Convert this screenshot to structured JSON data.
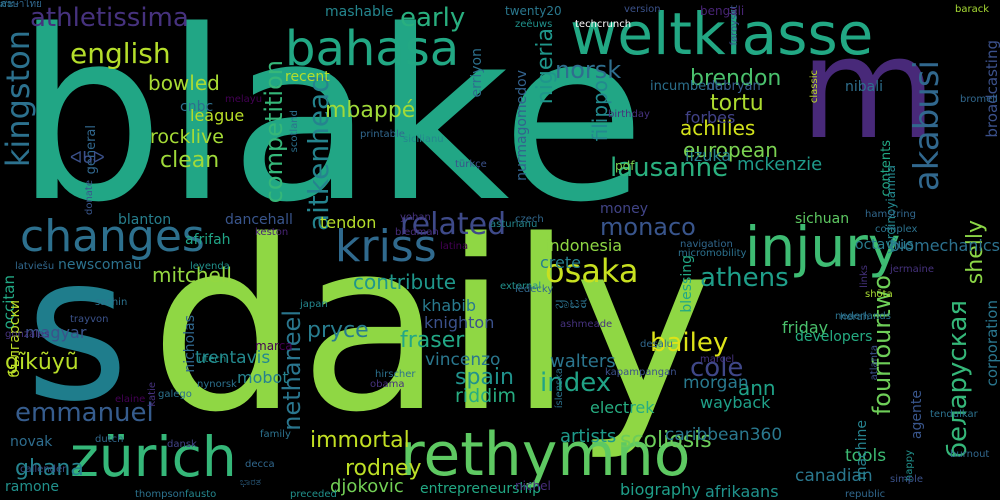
{
  "words": [
    {
      "text": "blake",
      "color": "#21a685"
    },
    {
      "text": "daily",
      "color": "#8fd744"
    },
    {
      "text": "s",
      "color": "#1f7d8c"
    },
    {
      "text": "m",
      "color": "#482979"
    },
    {
      "text": "weltklasse",
      "color": "#22a884"
    },
    {
      "text": "injury",
      "color": "#3ebc73"
    },
    {
      "text": "rethymno",
      "color": "#5ec962"
    },
    {
      "text": "zürich",
      "color": "#35b779"
    },
    {
      "text": "bahasa",
      "color": "#22a884"
    },
    {
      "text": "changes",
      "color": "#2d708e"
    },
    {
      "text": "kriss",
      "color": "#306a8e"
    },
    {
      "text": "english",
      "color": "#b5de2b"
    },
    {
      "text": "kingston",
      "color": "#2c718e"
    },
    {
      "text": "competition",
      "color": "#35b779"
    },
    {
      "text": "aitkenhead",
      "color": "#25848e"
    },
    {
      "text": "related",
      "color": "#3e4a89"
    },
    {
      "text": "osaka",
      "color": "#c8e020"
    },
    {
      "text": "athens",
      "color": "#1f9e89"
    },
    {
      "text": "akabusi",
      "color": "#31688e"
    },
    {
      "text": "fourfourtwo",
      "color": "#6ece58"
    },
    {
      "text": "беларуская",
      "color": "#35b779"
    },
    {
      "text": "emmanuel",
      "color": "#365c8d"
    },
    {
      "text": "bailey",
      "color": "#dde318"
    },
    {
      "text": "athletissima",
      "color": "#46327e"
    },
    {
      "text": "lausanne",
      "color": "#2ab07f"
    },
    {
      "text": "monaco",
      "color": "#39558c"
    },
    {
      "text": "mbappé",
      "color": "#a0da39"
    },
    {
      "text": "early",
      "color": "#29af7f"
    },
    {
      "text": "norsk",
      "color": "#2e6e8e"
    },
    {
      "text": "nigeria",
      "color": "#1f968b"
    },
    {
      "text": "brendon",
      "color": "#4ac16d"
    },
    {
      "text": "tortu",
      "color": "#addc30"
    },
    {
      "text": "european",
      "color": "#7ad151"
    },
    {
      "text": "achilles",
      "color": "#d2e21b"
    },
    {
      "text": "shelly",
      "color": "#8bd646"
    },
    {
      "text": "bowled",
      "color": "#a8db34"
    },
    {
      "text": "clean",
      "color": "#9fda3a"
    },
    {
      "text": "rocklive",
      "color": "#a5db36"
    },
    {
      "text": "league",
      "color": "#bade28"
    },
    {
      "text": "mitchell",
      "color": "#93d741"
    },
    {
      "text": "contribute",
      "color": "#1f978b"
    },
    {
      "text": "fraser",
      "color": "#22a785"
    },
    {
      "text": "pryce",
      "color": "#287c8e"
    },
    {
      "text": "index",
      "color": "#20a386"
    },
    {
      "text": "cole",
      "color": "#3f4788"
    },
    {
      "text": "ann",
      "color": "#1fa187"
    },
    {
      "text": "morgan",
      "color": "#29798e"
    },
    {
      "text": "spain",
      "color": "#20928c"
    },
    {
      "text": "riddim",
      "color": "#27ad81"
    },
    {
      "text": "nethaneel",
      "color": "#2a768e"
    },
    {
      "text": "immortal",
      "color": "#c2df23"
    },
    {
      "text": "rodney",
      "color": "#bddf26"
    },
    {
      "text": "djokovic",
      "color": "#73d056"
    },
    {
      "text": "scoliosis",
      "color": "#6ccd5a"
    },
    {
      "text": "artists",
      "color": "#1e9b8a"
    },
    {
      "text": "ghana",
      "color": "#25838e"
    },
    {
      "text": "gĩkũyũ",
      "color": "#b8de29"
    },
    {
      "text": "filippo",
      "color": "#23898e"
    },
    {
      "text": "vincenzo",
      "color": "#2a778e"
    },
    {
      "text": "walters",
      "color": "#2b758e"
    },
    {
      "text": "khabib",
      "color": "#297a8e"
    },
    {
      "text": "knighton",
      "color": "#3b518b"
    },
    {
      "text": "crete",
      "color": "#277f8e"
    },
    {
      "text": "indonesia",
      "color": "#8fd744"
    },
    {
      "text": "mckenzie",
      "color": "#1f9a8a"
    },
    {
      "text": "iizuka",
      "color": "#26828e"
    },
    {
      "text": "forbes",
      "color": "#414287"
    },
    {
      "text": "friday",
      "color": "#4ac16d"
    },
    {
      "text": "wayback",
      "color": "#1fa088"
    },
    {
      "text": "electrek",
      "color": "#26ad81"
    },
    {
      "text": "caribbean360",
      "color": "#2a788e"
    },
    {
      "text": "canadian",
      "color": "#2a788e"
    },
    {
      "text": "afrikaans",
      "color": "#20928c"
    },
    {
      "text": "biography",
      "color": "#1f9e89"
    },
    {
      "text": "entrepreneurship",
      "color": "#22a884"
    },
    {
      "text": "tools",
      "color": "#3dbc74"
    },
    {
      "text": "machine",
      "color": "#26828e"
    },
    {
      "text": "agente",
      "color": "#39568c"
    },
    {
      "text": "corporation",
      "color": "#2a768e"
    },
    {
      "text": "broadcasting",
      "color": "#3b518b"
    },
    {
      "text": "biomechanics",
      "color": "#2c718e"
    },
    {
      "text": "octavius",
      "color": "#287d8e"
    },
    {
      "text": "sichuan",
      "color": "#5ec962"
    },
    {
      "text": "contents",
      "color": "#22a884"
    },
    {
      "text": "vardinoyiannia",
      "color": "#24878e"
    },
    {
      "text": "erriyon",
      "color": "#2d718e"
    },
    {
      "text": "nurmagomedov",
      "color": "#33628d"
    },
    {
      "text": "incumbent",
      "color": "#2c718e"
    },
    {
      "text": "dabryan",
      "color": "#365d8d"
    },
    {
      "text": "nibali",
      "color": "#2e6f8e"
    },
    {
      "text": "mashable",
      "color": "#24868e"
    },
    {
      "text": "recent",
      "color": "#b5de2b"
    },
    {
      "text": "cnbc",
      "color": "#2e6f8e"
    },
    {
      "text": "general",
      "color": "#31678e"
    },
    {
      "text": "afrifah",
      "color": "#20a486"
    },
    {
      "text": "blanton",
      "color": "#277f8e"
    },
    {
      "text": "dancehall",
      "color": "#39558c"
    },
    {
      "text": "tendon",
      "color": "#b5de2b"
    },
    {
      "text": "occitan",
      "color": "#22a884"
    },
    {
      "text": "newscomau",
      "color": "#2c728e"
    },
    {
      "text": "nicholas",
      "color": "#31688e"
    },
    {
      "text": "trentavis",
      "color": "#23898e"
    },
    {
      "text": "mobot",
      "color": "#26828e"
    },
    {
      "text": "magyar",
      "color": "#3a538b"
    },
    {
      "text": "български",
      "color": "#bddf26"
    },
    {
      "text": "novak",
      "color": "#2e6d8e"
    },
    {
      "text": "ramone",
      "color": "#21918c"
    },
    {
      "text": "blessing",
      "color": "#22a884"
    },
    {
      "text": "developers",
      "color": "#25ab82"
    },
    {
      "text": "pdf",
      "color": "#7ad151"
    },
    {
      "text": "twenty20",
      "color": "#2a788e"
    },
    {
      "text": "zeêuws",
      "color": "#20928c"
    },
    {
      "text": "techcrunch",
      "color": "#ffffff"
    },
    {
      "text": "version",
      "color": "#3b528b"
    },
    {
      "text": "barack",
      "color": "#a8db34"
    },
    {
      "text": "føroyskt",
      "color": "#3b518b"
    },
    {
      "text": "classic",
      "color": "#bddf26"
    },
    {
      "text": "bromell",
      "color": "#31688e"
    },
    {
      "text": "birthday",
      "color": "#46327e"
    },
    {
      "text": "melayu",
      "color": "#440154"
    },
    {
      "text": "donate",
      "color": "#39568c"
    },
    {
      "text": "scotland",
      "color": "#2c718e"
    },
    {
      "text": "printable",
      "color": "#31688e"
    },
    {
      "text": "sicilianu",
      "color": "#24878e"
    },
    {
      "text": "czech",
      "color": "#31688e"
    },
    {
      "text": "asturianu",
      "color": "#24878e"
    },
    {
      "text": "türkçe",
      "color": "#3b528b"
    },
    {
      "text": "yohan",
      "color": "#46327e"
    },
    {
      "text": "bledman",
      "color": "#472d7b"
    },
    {
      "text": "latina",
      "color": "#440154"
    },
    {
      "text": "keston",
      "color": "#482475"
    },
    {
      "text": "latviešu",
      "color": "#31688e"
    },
    {
      "text": "leyenda",
      "color": "#21918c"
    },
    {
      "text": "sachin",
      "color": "#2c728e"
    },
    {
      "text": "trayvon",
      "color": "#3b528b"
    },
    {
      "text": "gonzales",
      "color": "#46327e"
    },
    {
      "text": "utech",
      "color": "#21918c"
    },
    {
      "text": "nynorsk",
      "color": "#2c718e"
    },
    {
      "text": "elaine",
      "color": "#440154"
    },
    {
      "text": "galego",
      "color": "#2c728e"
    },
    {
      "text": "katie",
      "color": "#46327e"
    },
    {
      "text": "callender",
      "color": "#3b528b"
    },
    {
      "text": "dutch",
      "color": "#31688e"
    },
    {
      "text": "dansk",
      "color": "#414487"
    },
    {
      "text": "family",
      "color": "#2c728e"
    },
    {
      "text": "decca",
      "color": "#31688e"
    },
    {
      "text": "thompson",
      "color": "#2c728e"
    },
    {
      "text": "fausto",
      "color": "#24878e"
    },
    {
      "text": "obama",
      "color": "#46327e"
    },
    {
      "text": "hirscher",
      "color": "#2c718e"
    },
    {
      "text": "kapampangan",
      "color": "#3b518b"
    },
    {
      "text": "ashmeade",
      "color": "#46327e"
    },
    {
      "text": "external",
      "color": "#21918c"
    },
    {
      "text": "ledecky",
      "color": "#31688e"
    },
    {
      "text": "navigation",
      "color": "#31688e"
    },
    {
      "text": "micromobility",
      "color": "#2c718e"
    },
    {
      "text": "money",
      "color": "#414487"
    },
    {
      "text": "complex",
      "color": "#2c728e"
    },
    {
      "text": "hamstring",
      "color": "#31688e"
    },
    {
      "text": "shōta",
      "color": "#a8db34"
    },
    {
      "text": "jermaine",
      "color": "#46327e"
    },
    {
      "text": "links",
      "color": "#46327e"
    },
    {
      "text": "herah",
      "color": "#2c718e"
    },
    {
      "text": "nederlands",
      "color": "#2c728e"
    },
    {
      "text": "atlanta",
      "color": "#3b518b"
    },
    {
      "text": "republic",
      "color": "#31688e"
    },
    {
      "text": "happy",
      "color": "#21918c"
    },
    {
      "text": "simple",
      "color": "#3b528b"
    },
    {
      "text": "burnout",
      "color": "#31688e"
    },
    {
      "text": "tendulkar",
      "color": "#2c728e"
    },
    {
      "text": "marcel",
      "color": "#46327e"
    },
    {
      "text": "desalu",
      "color": "#31688e"
    },
    {
      "text": "íslenska",
      "color": "#2c728e"
    },
    {
      "text": "japan",
      "color": "#24878e"
    },
    {
      "text": "preceded",
      "color": "#21918c"
    },
    {
      "text": "marca",
      "color": "#440154"
    },
    {
      "text": "nichel",
      "color": "#472d7b"
    },
    {
      "text": "bengali",
      "color": "#482475"
    },
    {
      "text": "ನಾಟಕ",
      "color": "#2c728e"
    },
    {
      "text": "ಭಾರತ",
      "color": "#31688e"
    },
    {
      "text": "ᐊᑲᐅ",
      "color": "#3b518b"
    },
    {
      "text": "ภาษาไทย",
      "color": "#31688e"
    },
    {
      "text": "ສະ",
      "color": "#2c718e"
    }
  ]
}
